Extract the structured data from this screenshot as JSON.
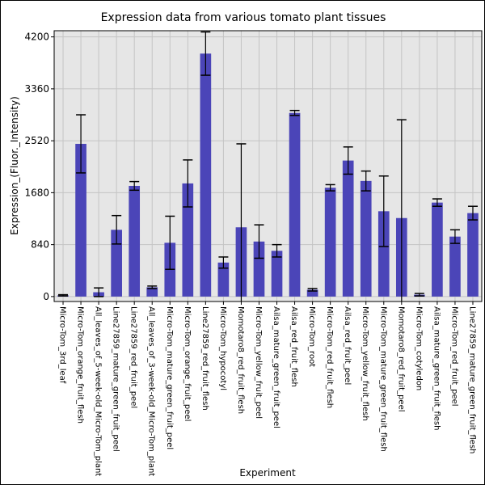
{
  "chart_data": {
    "type": "bar",
    "title": "Expression data from various tomato plant tissues",
    "xlabel": "Experiment",
    "ylabel": "Expression_(Fluor._Intensity)",
    "ylim": [
      -80,
      4300
    ],
    "yticks": [
      0,
      840,
      1680,
      2520,
      3360,
      4200
    ],
    "grid": true,
    "bar_color": "#4b45b8",
    "plot_bg": "#e6e6e6",
    "categories": [
      "Micro-Tom_3rd_leaf",
      "Micro-Tom_orange_fruit_flesh",
      "All_leaves_of_5-week-old_Micro-Tom_plant",
      "Line27859_mature_green_fruit_peel",
      "Line27859_red_fruit_peel",
      "All_leaves_of_3-week-old_Micro-Tom_plant",
      "Micro-Tom_mature_green_fruit_peel",
      "Micro-Tom_orange_fruit_peel",
      "Line27859_red_fruit_flesh",
      "Micro-Tom_hypocotyl",
      "Momotaro8_red_fruit_flesh",
      "Micro-Tom_yellow_fruit_peel",
      "Ailsa_mature_green_fruit_peel",
      "Ailsa_red_fruit_flesh",
      "Micro-Tom_root",
      "Micro-Tom_red_fruit_flesh",
      "Ailsa_red_fruit_peel",
      "Micro-Tom_yellow_fruit_flesh",
      "Micro-Tom_mature_green_fruit_flesh",
      "Momotaro8_red_fruit_peel",
      "Micro-Tom_cotyledon",
      "Ailsa_mature_green_fruit_flesh",
      "Micro-Tom_red_fruit_peel",
      "Line27859_mature_green_fruit_flesh"
    ],
    "values": [
      20,
      2470,
      70,
      1080,
      1790,
      150,
      870,
      1830,
      3930,
      550,
      1120,
      890,
      740,
      2970,
      110,
      1760,
      2200,
      1870,
      1380,
      1270,
      30,
      1520,
      970,
      1350
    ],
    "errors": [
      10,
      470,
      70,
      230,
      70,
      20,
      430,
      380,
      350,
      90,
      1350,
      270,
      100,
      40,
      20,
      50,
      220,
      160,
      570,
      1590,
      20,
      60,
      110,
      110
    ]
  }
}
